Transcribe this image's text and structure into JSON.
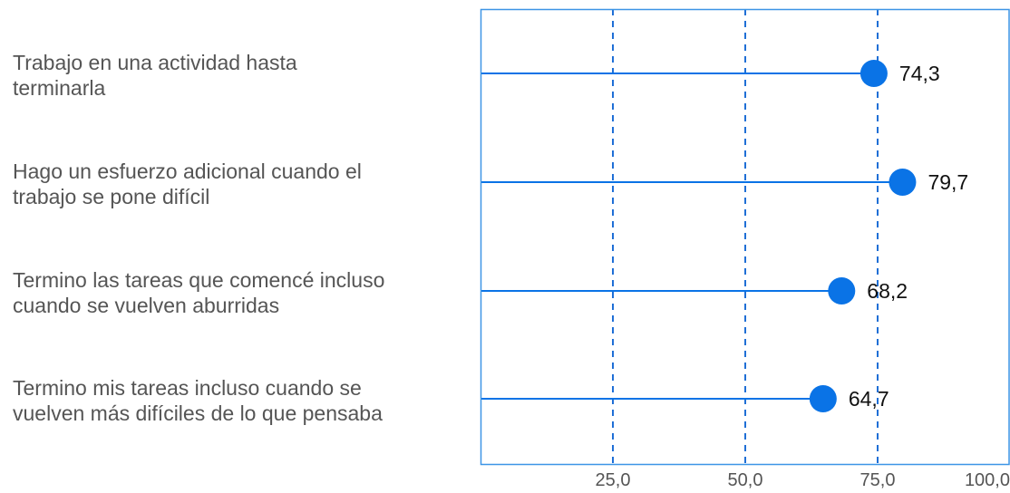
{
  "chart_data": {
    "type": "lollipop",
    "categories": [
      [
        "Trabajo en una actividad hasta",
        "terminarla"
      ],
      [
        "Hago un esfuerzo adicional cuando el",
        "trabajo se pone difícil"
      ],
      [
        "Termino las tareas que comencé incluso",
        "cuando se vuelven aburridas"
      ],
      [
        "Termino mis tareas incluso cuando se",
        "vuelven más difíciles de lo que pensaba"
      ]
    ],
    "values": [
      74.3,
      79.7,
      68.2,
      64.7
    ],
    "value_labels": [
      "74,3",
      "79,7",
      "68,2",
      "64,7"
    ],
    "xticks": [
      25,
      50,
      75,
      100
    ],
    "xtick_labels": [
      "25,0",
      "50,0",
      "75,0",
      "100,0"
    ],
    "xlim": [
      0,
      100
    ],
    "grid": "vertical dashed",
    "colors": {
      "accent": "#0a73e6",
      "frame": "#3d95e6",
      "grid": "#1f6fd6"
    }
  }
}
